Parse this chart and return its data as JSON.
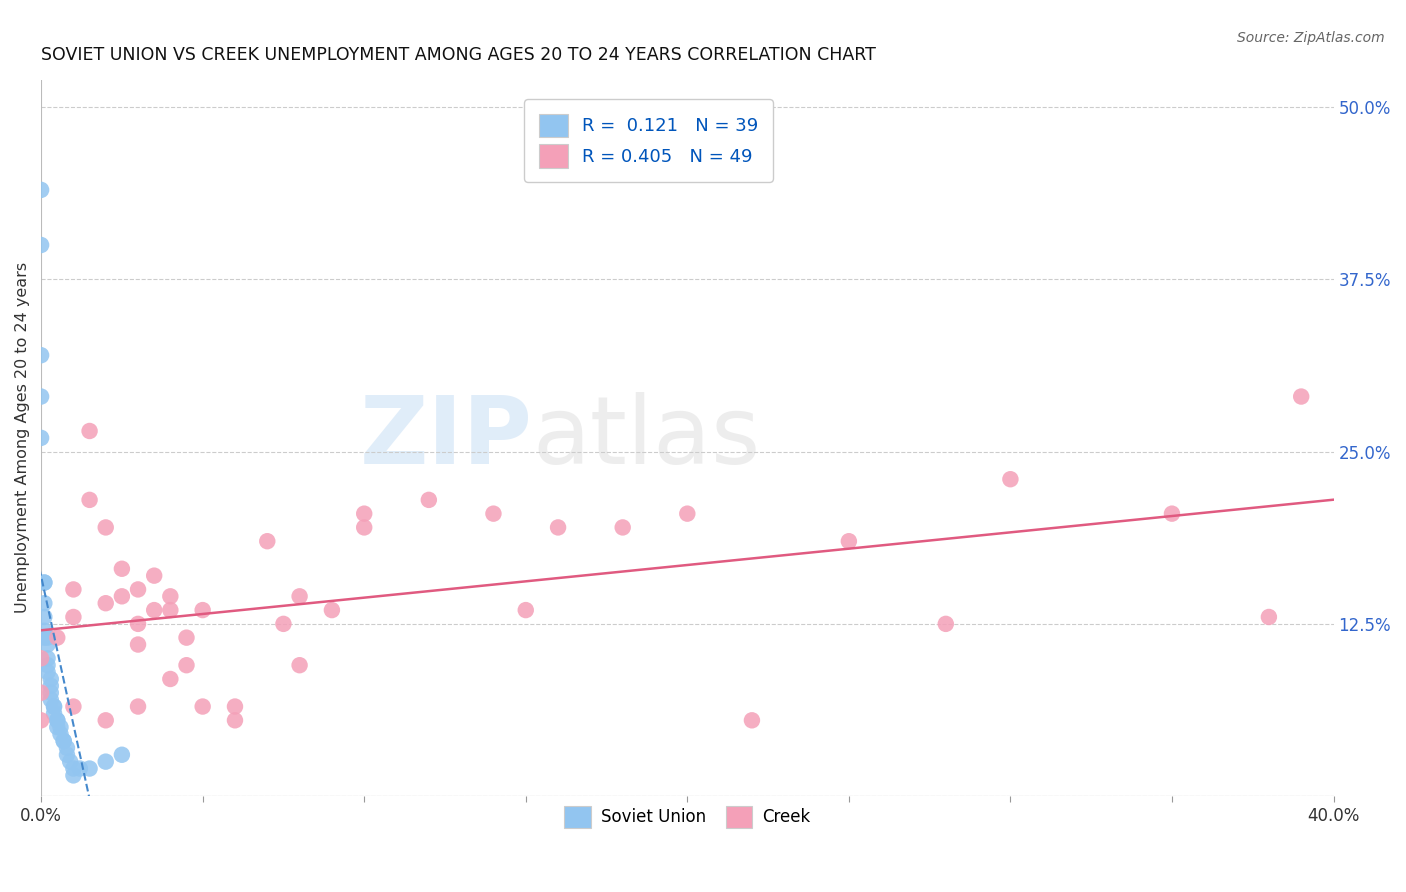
{
  "title": "SOVIET UNION VS CREEK UNEMPLOYMENT AMONG AGES 20 TO 24 YEARS CORRELATION CHART",
  "source": "Source: ZipAtlas.com",
  "ylabel": "Unemployment Among Ages 20 to 24 years",
  "xlim": [
    0.0,
    0.4
  ],
  "ylim": [
    0.0,
    0.52
  ],
  "x_ticks": [
    0.0,
    0.05,
    0.1,
    0.15,
    0.2,
    0.25,
    0.3,
    0.35,
    0.4
  ],
  "y_ticks_right": [
    0.0,
    0.125,
    0.25,
    0.375,
    0.5
  ],
  "y_tick_labels_right": [
    "",
    "12.5%",
    "25.0%",
    "37.5%",
    "50.0%"
  ],
  "soviet_R": 0.121,
  "soviet_N": 39,
  "creek_R": 0.405,
  "creek_N": 49,
  "soviet_color": "#92C5F0",
  "creek_color": "#F4A0B8",
  "soviet_line_color": "#4488CC",
  "creek_line_color": "#E05A80",
  "soviet_x": [
    0.0,
    0.0,
    0.0,
    0.0,
    0.0,
    0.001,
    0.001,
    0.001,
    0.001,
    0.001,
    0.001,
    0.002,
    0.002,
    0.002,
    0.002,
    0.002,
    0.003,
    0.003,
    0.003,
    0.003,
    0.004,
    0.004,
    0.004,
    0.005,
    0.005,
    0.005,
    0.006,
    0.006,
    0.007,
    0.007,
    0.008,
    0.008,
    0.009,
    0.01,
    0.01,
    0.012,
    0.015,
    0.02,
    0.025
  ],
  "soviet_y": [
    0.44,
    0.4,
    0.32,
    0.29,
    0.26,
    0.155,
    0.155,
    0.14,
    0.13,
    0.12,
    0.115,
    0.115,
    0.11,
    0.1,
    0.095,
    0.09,
    0.085,
    0.08,
    0.075,
    0.07,
    0.065,
    0.065,
    0.06,
    0.055,
    0.055,
    0.05,
    0.05,
    0.045,
    0.04,
    0.04,
    0.035,
    0.03,
    0.025,
    0.02,
    0.015,
    0.02,
    0.02,
    0.025,
    0.03
  ],
  "creek_x": [
    0.0,
    0.0,
    0.0,
    0.005,
    0.01,
    0.01,
    0.01,
    0.015,
    0.015,
    0.02,
    0.02,
    0.02,
    0.025,
    0.025,
    0.03,
    0.03,
    0.03,
    0.03,
    0.035,
    0.035,
    0.04,
    0.04,
    0.04,
    0.045,
    0.045,
    0.05,
    0.05,
    0.06,
    0.06,
    0.07,
    0.075,
    0.08,
    0.08,
    0.09,
    0.1,
    0.1,
    0.12,
    0.14,
    0.15,
    0.16,
    0.18,
    0.2,
    0.22,
    0.25,
    0.28,
    0.3,
    0.35,
    0.38,
    0.39
  ],
  "creek_y": [
    0.1,
    0.075,
    0.055,
    0.115,
    0.15,
    0.13,
    0.065,
    0.265,
    0.215,
    0.195,
    0.14,
    0.055,
    0.165,
    0.145,
    0.15,
    0.125,
    0.11,
    0.065,
    0.16,
    0.135,
    0.145,
    0.135,
    0.085,
    0.115,
    0.095,
    0.135,
    0.065,
    0.065,
    0.055,
    0.185,
    0.125,
    0.145,
    0.095,
    0.135,
    0.205,
    0.195,
    0.215,
    0.205,
    0.135,
    0.195,
    0.195,
    0.205,
    0.055,
    0.185,
    0.125,
    0.23,
    0.205,
    0.13,
    0.29
  ],
  "background_color": "#ffffff",
  "grid_color": "#cccccc",
  "legend_labels": [
    "Soviet Union",
    "Creek"
  ],
  "legend_colors": [
    "#92C5F0",
    "#F4A0B8"
  ],
  "r_color": "#0055BB",
  "n_color": "#0055BB"
}
